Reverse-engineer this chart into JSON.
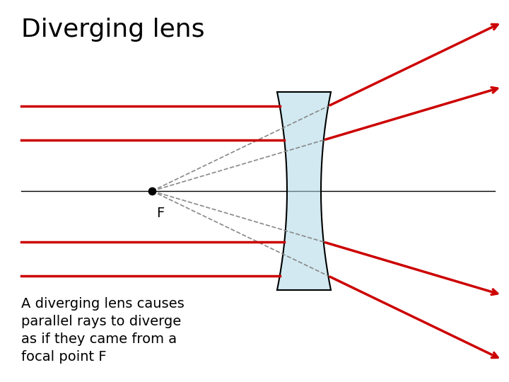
{
  "title": "Diverging lens",
  "title_fontsize": 26,
  "title_fontweight": "normal",
  "caption": "A diverging lens causes\nparallel rays to diverge\nas if they came from a\nfocal point F",
  "caption_fontsize": 14,
  "background_color": "#ffffff",
  "lens_color": "#add8e6",
  "lens_edge_color": "#000000",
  "lens_alpha": 0.55,
  "ray_color": "#cc0000",
  "ray_linewidth": 2.5,
  "dashed_color": "#888888",
  "dashed_linewidth": 1.2,
  "figsize": [
    7.2,
    5.4
  ],
  "dpi": 100
}
